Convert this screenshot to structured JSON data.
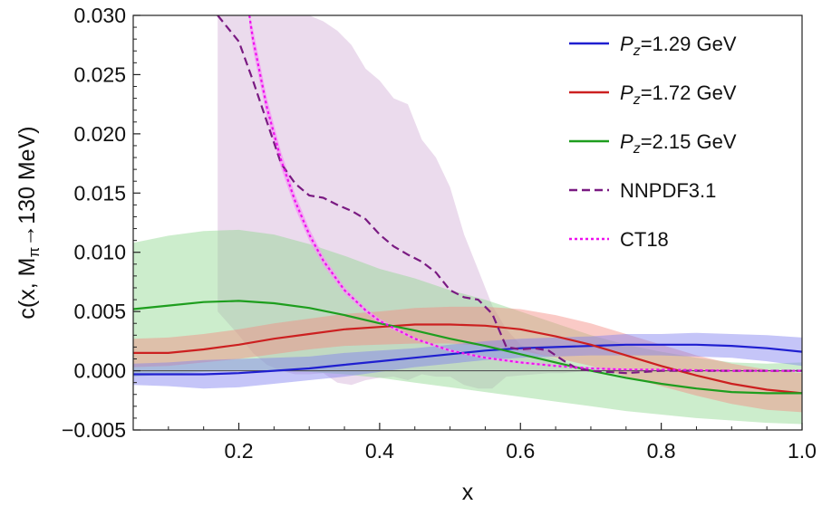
{
  "chart_data": {
    "type": "line",
    "xlabel": "x",
    "ylabel": "c(x, M",
    "ylabel_sub": "π",
    "ylabel_tail": "→130 MeV)",
    "xlim": [
      0.05,
      1.0
    ],
    "ylim": [
      -0.005,
      0.03
    ],
    "x_ticks": [
      0.2,
      0.4,
      0.6,
      0.8,
      1.0
    ],
    "x_tick_labels": [
      "0.2",
      "0.4",
      "0.6",
      "0.8",
      "1.0"
    ],
    "y_ticks": [
      -0.005,
      0.0,
      0.005,
      0.01,
      0.015,
      0.02,
      0.025,
      0.03
    ],
    "y_tick_labels": [
      "−0.005",
      "0.000",
      "0.005",
      "0.010",
      "0.015",
      "0.020",
      "0.025",
      "0.030"
    ],
    "grid": false,
    "legend_position": "top-right",
    "series": [
      {
        "name_prefix": "P",
        "name_sub": "z",
        "name_suffix": "=1.29 GeV",
        "color": "#1f1fd0",
        "band_color": "#7f7ff0",
        "dash": "solid",
        "x": [
          0.05,
          0.1,
          0.15,
          0.2,
          0.25,
          0.3,
          0.35,
          0.4,
          0.45,
          0.5,
          0.55,
          0.6,
          0.65,
          0.7,
          0.75,
          0.8,
          0.85,
          0.9,
          0.95,
          1.0
        ],
        "y": [
          -0.0003,
          -0.0003,
          -0.0003,
          -0.0002,
          0.0,
          0.0002,
          0.0005,
          0.0008,
          0.0011,
          0.0014,
          0.0017,
          0.0019,
          0.002,
          0.0021,
          0.0022,
          0.0022,
          0.0022,
          0.0021,
          0.0019,
          0.0016
        ],
        "lower": [
          -0.0012,
          -0.0013,
          -0.0015,
          -0.0014,
          -0.0011,
          -0.0008,
          -0.0005,
          -0.0001,
          0.0003,
          0.0006,
          0.0009,
          0.0011,
          0.0012,
          0.0013,
          0.0013,
          0.0013,
          0.0012,
          0.0011,
          0.0008,
          0.0004
        ],
        "upper": [
          0.0006,
          0.0007,
          0.0009,
          0.001,
          0.0011,
          0.0012,
          0.0015,
          0.0017,
          0.0019,
          0.0022,
          0.0025,
          0.0027,
          0.0028,
          0.0029,
          0.0031,
          0.0031,
          0.0032,
          0.0031,
          0.003,
          0.0028
        ]
      },
      {
        "name_prefix": "P",
        "name_sub": "z",
        "name_suffix": "=1.72 GeV",
        "color": "#cc2020",
        "band_color": "#f58a80",
        "dash": "solid",
        "x": [
          0.05,
          0.1,
          0.15,
          0.2,
          0.25,
          0.3,
          0.35,
          0.4,
          0.45,
          0.5,
          0.55,
          0.6,
          0.65,
          0.7,
          0.75,
          0.8,
          0.85,
          0.9,
          0.95,
          1.0
        ],
        "y": [
          0.0015,
          0.0015,
          0.0018,
          0.0022,
          0.0027,
          0.0031,
          0.0035,
          0.0037,
          0.0039,
          0.0039,
          0.0038,
          0.0035,
          0.0029,
          0.0022,
          0.0013,
          0.0004,
          -0.0004,
          -0.0011,
          -0.0016,
          -0.0019
        ],
        "lower": [
          0.0003,
          0.0004,
          0.0007,
          0.001,
          0.0014,
          0.0018,
          0.0021,
          0.0022,
          0.0023,
          0.0023,
          0.0021,
          0.0017,
          0.0011,
          0.0004,
          -0.0005,
          -0.0013,
          -0.0021,
          -0.0028,
          -0.0033,
          -0.0035
        ],
        "upper": [
          0.0027,
          0.0028,
          0.0031,
          0.0035,
          0.004,
          0.0044,
          0.0048,
          0.005,
          0.0053,
          0.0054,
          0.0054,
          0.0052,
          0.0047,
          0.004,
          0.0031,
          0.0022,
          0.0013,
          0.0006,
          0.0001,
          -0.0002
        ]
      },
      {
        "name_prefix": "P",
        "name_sub": "z",
        "name_suffix": "=2.15 GeV",
        "color": "#1e9e1e",
        "band_color": "#8fd88f",
        "dash": "solid",
        "x": [
          0.05,
          0.1,
          0.15,
          0.2,
          0.25,
          0.3,
          0.35,
          0.4,
          0.45,
          0.5,
          0.55,
          0.6,
          0.65,
          0.7,
          0.75,
          0.8,
          0.85,
          0.9,
          0.95,
          1.0
        ],
        "y": [
          0.0052,
          0.0055,
          0.0058,
          0.0059,
          0.0057,
          0.0053,
          0.0047,
          0.004,
          0.0034,
          0.0027,
          0.0021,
          0.0014,
          0.0007,
          0.0,
          -0.0006,
          -0.0011,
          -0.0015,
          -0.0018,
          -0.0019,
          -0.0019
        ],
        "lower": [
          -0.0005,
          -0.0003,
          -0.0001,
          0.0,
          0.0,
          -0.0001,
          -0.0003,
          -0.0006,
          -0.001,
          -0.0014,
          -0.0018,
          -0.0022,
          -0.0026,
          -0.003,
          -0.0034,
          -0.0037,
          -0.004,
          -0.0042,
          -0.0044,
          -0.0045
        ],
        "upper": [
          0.0108,
          0.0114,
          0.0118,
          0.0119,
          0.0115,
          0.0107,
          0.0097,
          0.0086,
          0.0078,
          0.0068,
          0.006,
          0.005,
          0.004,
          0.003,
          0.0022,
          0.0016,
          0.0011,
          0.0007,
          0.0006,
          0.0007
        ]
      },
      {
        "name": "NNPDF3.1",
        "color": "#7a1a82",
        "band_color": "#d2b0d8",
        "dash": "dashed",
        "x": [
          0.17,
          0.2,
          0.22,
          0.24,
          0.26,
          0.28,
          0.3,
          0.32,
          0.34,
          0.36,
          0.38,
          0.4,
          0.42,
          0.44,
          0.46,
          0.48,
          0.5,
          0.52,
          0.54,
          0.56,
          0.58,
          0.6,
          0.62,
          0.64,
          0.66,
          0.68,
          0.7,
          0.75,
          0.8,
          0.9,
          1.0
        ],
        "y": [
          0.03,
          0.0278,
          0.0245,
          0.021,
          0.0175,
          0.0158,
          0.0148,
          0.0146,
          0.014,
          0.0135,
          0.0128,
          0.0115,
          0.0105,
          0.0098,
          0.0092,
          0.0083,
          0.0068,
          0.0062,
          0.006,
          0.0048,
          0.002,
          0.0018,
          0.0019,
          0.0017,
          0.0009,
          0.0002,
          0.0,
          -0.0002,
          0.0,
          0.0,
          0.0
        ],
        "lower": [
          0.005,
          0.003,
          0.0015,
          0.0005,
          0.0,
          -0.0003,
          -0.0003,
          -0.0002,
          -0.001,
          -0.0012,
          -0.0008,
          -0.0006,
          -0.0005,
          -0.0008,
          -0.0003,
          -0.0005,
          -0.0005,
          -0.0012,
          -0.0015,
          -0.0015,
          -0.0005,
          -0.0004,
          -0.0003,
          -0.0002,
          -0.0002,
          -0.0001,
          0.0,
          -0.0002,
          0.0,
          0.0,
          0.0
        ],
        "upper": [
          0.03,
          0.03,
          0.03,
          0.03,
          0.03,
          0.03,
          0.03,
          0.0295,
          0.0287,
          0.0275,
          0.0255,
          0.0245,
          0.023,
          0.0225,
          0.0195,
          0.018,
          0.0155,
          0.0115,
          0.0085,
          0.0055,
          0.0035,
          0.0022,
          0.0016,
          0.0012,
          0.0008,
          0.0004,
          0.0002,
          0.0001,
          0.0,
          0.0,
          0.0
        ]
      },
      {
        "name": "CT18",
        "color": "#ee10ee",
        "band_color": "#f597f5",
        "dash": "dotted",
        "x": [
          0.215,
          0.22,
          0.24,
          0.26,
          0.28,
          0.3,
          0.32,
          0.35,
          0.38,
          0.4,
          0.45,
          0.5,
          0.55,
          0.6,
          0.65,
          0.7,
          0.75,
          0.8,
          0.9,
          1.0
        ],
        "y": [
          0.03,
          0.028,
          0.0222,
          0.0178,
          0.0143,
          0.0115,
          0.0093,
          0.0068,
          0.0051,
          0.0042,
          0.0027,
          0.0017,
          0.0011,
          0.0007,
          0.0004,
          0.0002,
          0.0001,
          0.0001,
          0.0,
          0.0
        ],
        "lower": [
          0.029,
          0.0271,
          0.0214,
          0.0171,
          0.0137,
          0.011,
          0.0089,
          0.0065,
          0.0049,
          0.004,
          0.0026,
          0.0016,
          0.001,
          0.0006,
          0.0004,
          0.0002,
          0.0001,
          0.0001,
          0.0,
          0.0
        ],
        "upper": [
          0.03,
          0.0289,
          0.023,
          0.0185,
          0.0149,
          0.012,
          0.0097,
          0.0071,
          0.0053,
          0.0044,
          0.0028,
          0.0018,
          0.0012,
          0.0008,
          0.0005,
          0.0003,
          0.0002,
          0.0001,
          0.0,
          0.0
        ]
      }
    ]
  }
}
